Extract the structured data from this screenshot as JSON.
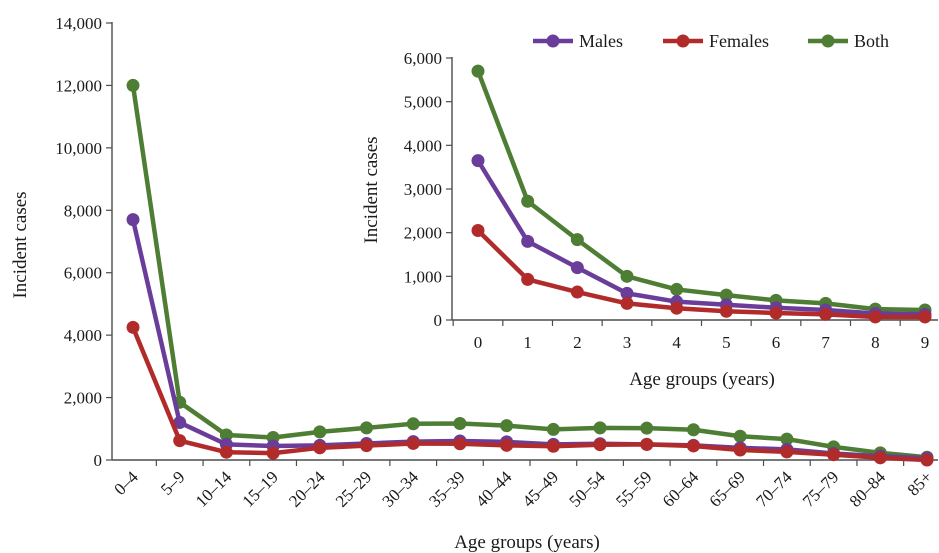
{
  "chart_data": [
    {
      "id": "main",
      "type": "line",
      "ylabel": "Incident cases",
      "xlabel": "Age groups  (years)",
      "ylim": [
        0,
        14000
      ],
      "yticks": [
        0,
        2000,
        4000,
        6000,
        8000,
        10000,
        12000,
        14000
      ],
      "ytick_labels": [
        "0",
        "2,000",
        "4,000",
        "6,000",
        "8,000",
        "10,000",
        "12,000",
        "14,000"
      ],
      "grid": false,
      "categories": [
        "0–4",
        "5–9",
        "10–14",
        "15–19",
        "20–24",
        "25–29",
        "30–34",
        "35–39",
        "40–44",
        "45–49",
        "50–54",
        "55–59",
        "60–64",
        "65–69",
        "70–74",
        "75–79",
        "80–84",
        "85+"
      ],
      "series": [
        {
          "name": "Both",
          "color": "#4e7d34",
          "values": [
            12000,
            1850,
            800,
            720,
            900,
            1030,
            1160,
            1170,
            1100,
            980,
            1030,
            1020,
            970,
            760,
            670,
            420,
            230,
            90
          ]
        },
        {
          "name": "Males",
          "color": "#6a3d9a",
          "values": [
            7700,
            1200,
            500,
            450,
            470,
            530,
            590,
            610,
            580,
            500,
            520,
            500,
            470,
            390,
            340,
            210,
            120,
            60
          ]
        },
        {
          "name": "Females",
          "color": "#b22b2b",
          "values": [
            4250,
            620,
            250,
            220,
            390,
            460,
            530,
            520,
            470,
            440,
            490,
            500,
            450,
            320,
            260,
            170,
            70,
            0
          ]
        }
      ]
    },
    {
      "id": "inset",
      "type": "line",
      "ylabel": "Incident cases",
      "xlabel": "Age groups (years)",
      "ylim": [
        0,
        6000
      ],
      "yticks": [
        0,
        1000,
        2000,
        3000,
        4000,
        5000,
        6000
      ],
      "ytick_labels": [
        "0",
        "1,000",
        "2,000",
        "3,000",
        "4,000",
        "5,000",
        "6,000"
      ],
      "grid": false,
      "legend_position": "top",
      "categories": [
        "0",
        "1",
        "2",
        "3",
        "4",
        "5",
        "6",
        "7",
        "8",
        "9"
      ],
      "legend": [
        "Males",
        "Females",
        "Both"
      ],
      "series": [
        {
          "name": "Both",
          "color": "#4e7d34",
          "values": [
            5700,
            2720,
            1840,
            1000,
            700,
            570,
            450,
            380,
            250,
            230
          ]
        },
        {
          "name": "Males",
          "color": "#6a3d9a",
          "values": [
            3650,
            1800,
            1200,
            610,
            420,
            350,
            280,
            230,
            150,
            130
          ]
        },
        {
          "name": "Females",
          "color": "#b22b2b",
          "values": [
            2050,
            930,
            640,
            380,
            270,
            200,
            160,
            130,
            70,
            70
          ]
        }
      ]
    }
  ]
}
